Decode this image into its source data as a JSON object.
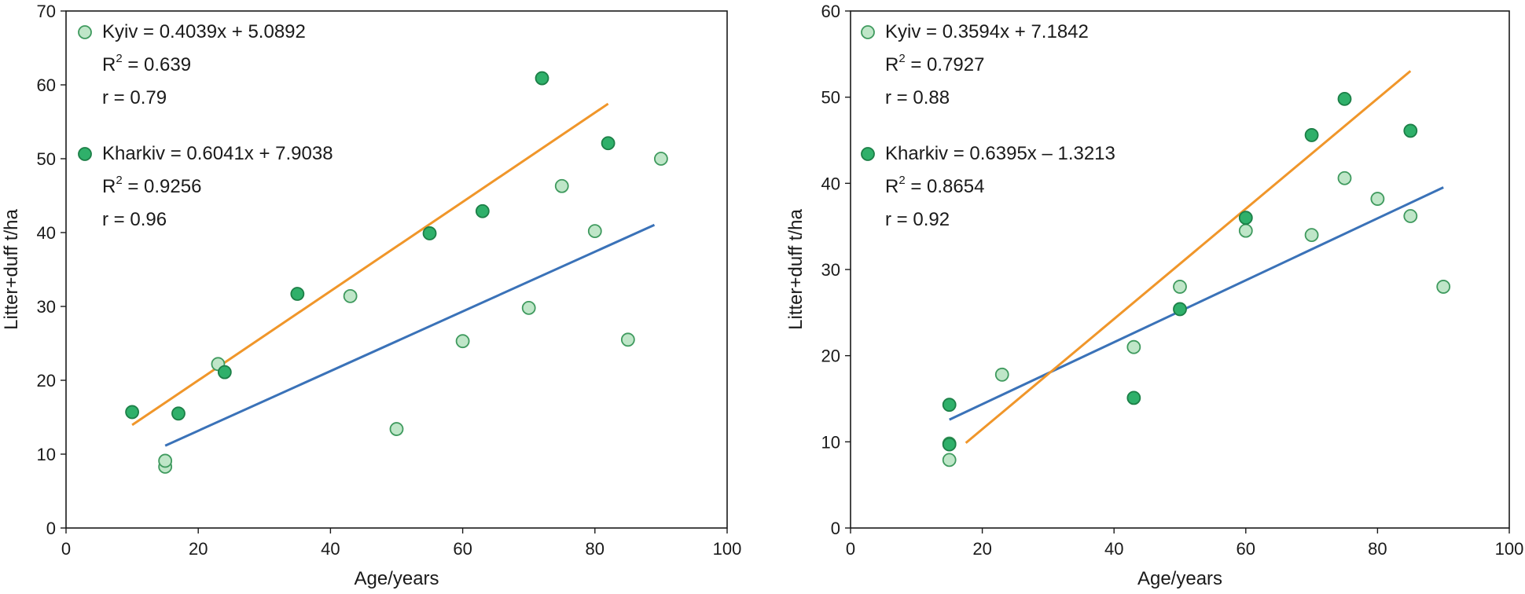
{
  "chart_data": [
    {
      "type": "scatter",
      "xlabel": "Age/years",
      "ylabel": "Litter+duff  t/ha",
      "xlim": [
        0,
        100
      ],
      "ylim": [
        0,
        70
      ],
      "xticks": [
        0,
        20,
        40,
        60,
        80,
        100
      ],
      "yticks": [
        0,
        10,
        20,
        30,
        40,
        50,
        60,
        70
      ],
      "grid": false,
      "legend_position": "top-left",
      "series": [
        {
          "name": "Kyiv",
          "equation": "Kyiv = 0.4039x + 5.0892",
          "r2_prefix": "R",
          "r2_sup": "2",
          "r2_value": " = 0.639",
          "r_text": "r = 0.79",
          "marker_fill": "#bfe6c8",
          "marker_stroke": "#3f9a5e",
          "line_color": "#3a72b8",
          "trend": {
            "slope": 0.4039,
            "intercept": 5.0892,
            "x_start": 15,
            "x_end": 89
          },
          "points": [
            [
              15,
              8.3
            ],
            [
              15,
              9.1
            ],
            [
              23,
              22.2
            ],
            [
              43,
              31.4
            ],
            [
              50,
              13.4
            ],
            [
              60,
              25.3
            ],
            [
              70,
              29.8
            ],
            [
              75,
              46.3
            ],
            [
              80,
              40.2
            ],
            [
              85,
              25.5
            ],
            [
              90,
              50.0
            ]
          ]
        },
        {
          "name": "Kharkiv",
          "equation": "Kharkiv = 0.6041x + 7.9038",
          "r2_prefix": "R",
          "r2_sup": "2",
          "r2_value": " = 0.9256",
          "r_text": "r = 0.96",
          "marker_fill": "#2fb06a",
          "marker_stroke": "#1c7f47",
          "line_color": "#f0962a",
          "trend": {
            "slope": 0.6041,
            "intercept": 7.9038,
            "x_start": 10,
            "x_end": 82
          },
          "points": [
            [
              10,
              15.7
            ],
            [
              17,
              15.5
            ],
            [
              24,
              21.1
            ],
            [
              35,
              31.7
            ],
            [
              55,
              39.9
            ],
            [
              63,
              42.9
            ],
            [
              72,
              60.9
            ],
            [
              82,
              52.1
            ]
          ]
        }
      ]
    },
    {
      "type": "scatter",
      "xlabel": "Age/years",
      "ylabel": "Litter+duff  t/ha",
      "xlim": [
        0,
        100
      ],
      "ylim": [
        0,
        60
      ],
      "xticks": [
        0,
        20,
        40,
        60,
        80,
        100
      ],
      "yticks": [
        0,
        10,
        20,
        30,
        40,
        50,
        60
      ],
      "grid": false,
      "legend_position": "top-left",
      "series": [
        {
          "name": "Kyiv",
          "equation": "Kyiv = 0.3594x + 7.1842",
          "r2_prefix": "R",
          "r2_sup": "2",
          "r2_value": " = 0.7927",
          "r_text": "r = 0.88",
          "marker_fill": "#bfe6c8",
          "marker_stroke": "#3f9a5e",
          "line_color": "#3a72b8",
          "trend": {
            "slope": 0.3594,
            "intercept": 7.1842,
            "x_start": 15,
            "x_end": 90
          },
          "points": [
            [
              15,
              7.9
            ],
            [
              15,
              9.8
            ],
            [
              23,
              17.8
            ],
            [
              43,
              21.0
            ],
            [
              50,
              28.0
            ],
            [
              60,
              34.5
            ],
            [
              70,
              34.0
            ],
            [
              75,
              40.6
            ],
            [
              80,
              38.2
            ],
            [
              85,
              36.2
            ],
            [
              90,
              28.0
            ]
          ]
        },
        {
          "name": "Kharkiv",
          "equation": "Kharkiv = 0.6395x – 1.3213",
          "r2_prefix": "R",
          "r2_sup": "2",
          "r2_value": " = 0.8654",
          "r_text": "r = 0.92",
          "marker_fill": "#2fb06a",
          "marker_stroke": "#1c7f47",
          "line_color": "#f0962a",
          "trend": {
            "slope": 0.6395,
            "intercept": -1.3213,
            "x_start": 17.5,
            "x_end": 85
          },
          "points": [
            [
              15,
              14.3
            ],
            [
              15,
              9.7
            ],
            [
              43,
              15.1
            ],
            [
              50,
              25.4
            ],
            [
              60,
              36.0
            ],
            [
              70,
              45.6
            ],
            [
              75,
              49.8
            ],
            [
              85,
              46.1
            ]
          ]
        }
      ]
    }
  ]
}
